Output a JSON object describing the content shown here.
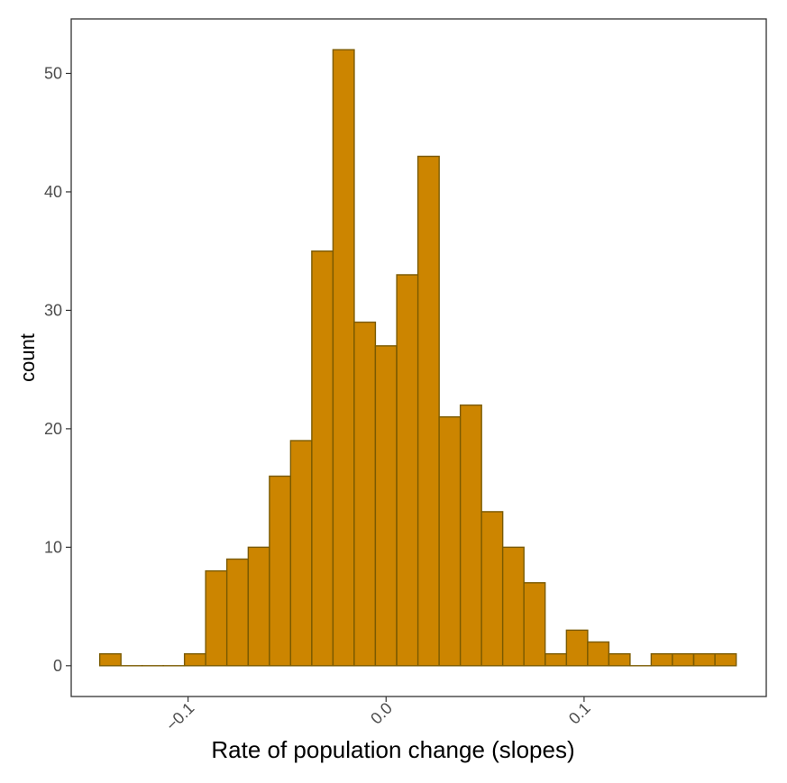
{
  "chart_data": {
    "type": "bar",
    "title": "",
    "xlabel": "Rate of population change (slopes)",
    "ylabel": "count",
    "bin_width": 0.010714,
    "bin_starts": [
      -0.1446,
      -0.1339,
      -0.1232,
      -0.1125,
      -0.1018,
      -0.0911,
      -0.0804,
      -0.0696,
      -0.0589,
      -0.0482,
      -0.0375,
      -0.0268,
      -0.0161,
      -0.0054,
      0.0054,
      0.0161,
      0.0268,
      0.0375,
      0.0482,
      0.0589,
      0.0696,
      0.0804,
      0.0911,
      0.1018,
      0.1125,
      0.1232,
      0.1339,
      0.1446,
      0.1554,
      0.1661
    ],
    "values": [
      1,
      0,
      0,
      0,
      1,
      8,
      9,
      10,
      16,
      19,
      35,
      52,
      29,
      27,
      33,
      43,
      21,
      22,
      13,
      10,
      7,
      1,
      3,
      2,
      1,
      0,
      1,
      1,
      1,
      1
    ],
    "xlim": [
      -0.159,
      0.192
    ],
    "ylim": [
      -2.6,
      54.6
    ],
    "x_ticks": [
      -0.1,
      0.0,
      0.1
    ],
    "x_tick_labels": [
      "−0.1",
      "0.0",
      "0.1"
    ],
    "y_ticks": [
      0,
      10,
      20,
      30,
      40,
      50
    ],
    "y_tick_labels": [
      "0",
      "10",
      "20",
      "30",
      "40",
      "50"
    ],
    "grid": false,
    "legend": "none",
    "colors": {
      "bar_fill": "#CC8500",
      "bar_stroke": "#7A5A00",
      "panel_border": "#333333",
      "tick_text": "#4d4d4d"
    }
  }
}
